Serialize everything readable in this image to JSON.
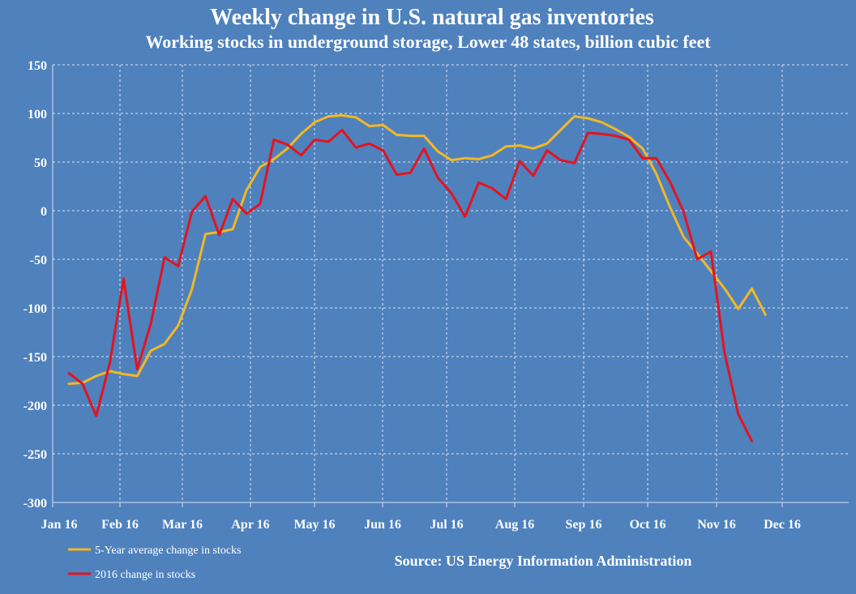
{
  "chart_data": {
    "type": "line",
    "title": "Weekly change in U.S. natural gas inventories",
    "subtitle": "Working stocks in underground storage, Lower 48 states, billion cubic feet",
    "ylim": [
      -300,
      150
    ],
    "y_ticks": [
      150,
      100,
      50,
      0,
      -50,
      -100,
      -150,
      -200,
      -250,
      -300
    ],
    "x_ticks": [
      "Jan 16",
      "Feb 16",
      "Mar 16",
      "Apr 16",
      "May 16",
      "Jun 16",
      "Jul 16",
      "Aug 16",
      "Sep 16",
      "Oct 16",
      "Nov 16",
      "Dec 16"
    ],
    "grid": true,
    "legend_position": "bottom-left",
    "source": "Source: US Energy Information Administration",
    "colors": {
      "background": "#4f81bd",
      "avg": "#f2b824",
      "y2016": "#e4131f",
      "grid": "#d9e4f2"
    },
    "series": [
      {
        "name": "5-Year average change in stocks",
        "color": "#f2b824",
        "values": [
          -178,
          -177,
          -170,
          -165,
          -168,
          -170,
          -144,
          -137,
          -118,
          -81,
          -24,
          -22,
          -19,
          21,
          45,
          53,
          64,
          79,
          91,
          97,
          98,
          96,
          87,
          88,
          78,
          77,
          77,
          61,
          52,
          54,
          53,
          57,
          66,
          67,
          64,
          69,
          83,
          97,
          95,
          91,
          84,
          76,
          64,
          38,
          4,
          -27,
          -44,
          -62,
          -80,
          -101,
          -80,
          -107
        ]
      },
      {
        "name": "2016 change in stocks",
        "color": "#e4131f",
        "values": [
          -167,
          -178,
          -211,
          -156,
          -70,
          -163,
          -116,
          -48,
          -57,
          -1,
          15,
          -25,
          12,
          -3,
          7,
          73,
          68,
          57,
          73,
          71,
          83,
          65,
          69,
          62,
          37,
          39,
          64,
          34,
          18,
          -6,
          29,
          23,
          12,
          51,
          36,
          62,
          52,
          49,
          80,
          79,
          77,
          73,
          54,
          54,
          30,
          -1,
          -50,
          -42,
          -146,
          -209,
          -237
        ]
      }
    ]
  }
}
